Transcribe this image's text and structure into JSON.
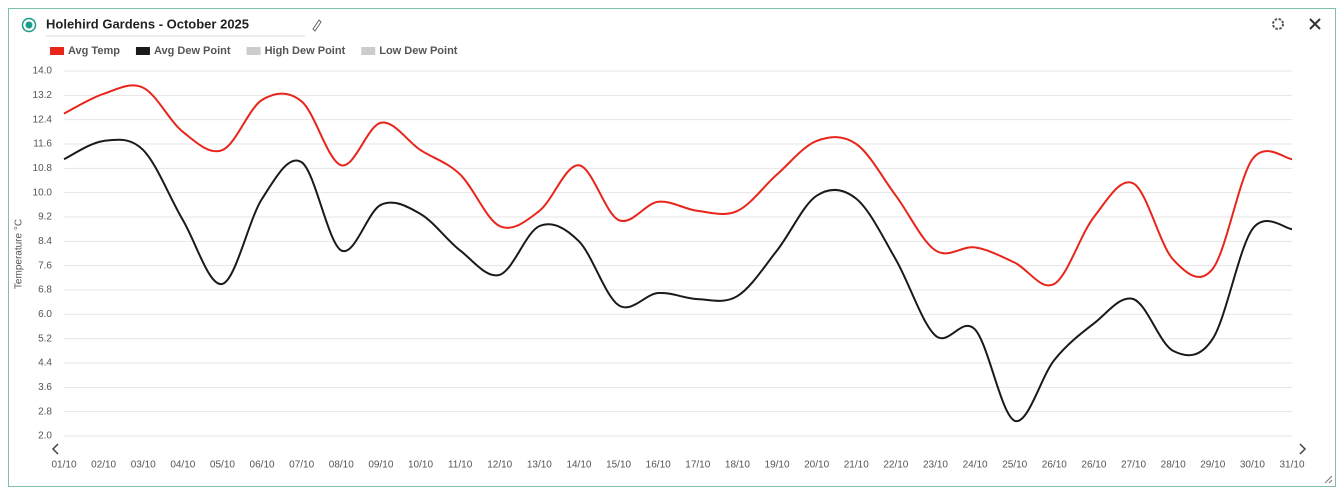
{
  "chart_data": {
    "type": "line",
    "title": "Holehird Gardens - October 2025",
    "y_label": "Temperature °C",
    "categories": [
      "01/10",
      "02/10",
      "03/10",
      "04/10",
      "05/10",
      "06/10",
      "07/10",
      "08/10",
      "09/10",
      "10/10",
      "11/10",
      "12/10",
      "13/10",
      "14/10",
      "15/10",
      "16/10",
      "17/10",
      "18/10",
      "19/10",
      "20/10",
      "21/10",
      "22/10",
      "23/10",
      "24/10",
      "25/10",
      "26/10",
      "26/10",
      "27/10",
      "28/10",
      "29/10",
      "30/10",
      "31/10"
    ],
    "series": [
      {
        "name": "Avg Temp",
        "color": "#e8251a",
        "visible": true,
        "values": [
          12.6,
          13.25,
          13.45,
          12.0,
          11.4,
          13.05,
          13.0,
          10.9,
          12.3,
          11.4,
          10.6,
          8.9,
          9.4,
          10.9,
          9.1,
          9.7,
          9.4,
          9.4,
          10.6,
          11.7,
          11.6,
          9.9,
          8.1,
          8.2,
          7.7,
          7.0,
          9.2,
          10.3,
          7.8,
          7.5,
          11.1,
          11.1
        ]
      },
      {
        "name": "Avg Dew Point",
        "color": "#1a1a1a",
        "visible": true,
        "values": [
          11.1,
          11.7,
          11.4,
          9.1,
          7.0,
          9.8,
          11.0,
          8.1,
          9.6,
          9.3,
          8.1,
          7.3,
          8.9,
          8.4,
          6.3,
          6.7,
          6.5,
          6.6,
          8.1,
          9.9,
          9.8,
          7.8,
          5.3,
          5.5,
          2.5,
          4.5,
          5.7,
          6.5,
          4.8,
          5.2,
          8.8,
          8.8
        ]
      },
      {
        "name": "High Dew Point",
        "color": "#cccccc",
        "visible": false
      },
      {
        "name": "Low Dew Point",
        "color": "#cccccc",
        "visible": false
      }
    ],
    "ylim": [
      2,
      14
    ],
    "yticks": [
      {
        "value": 2,
        "label": "2.0"
      },
      2.8,
      3.6,
      4.4,
      5.2,
      {
        "value": 6,
        "label": "6.0"
      },
      6.8,
      7.6,
      8.4,
      9.2,
      {
        "value": 10,
        "label": "10.0"
      },
      10.8,
      11.6,
      12.4,
      13.2,
      {
        "value": 14,
        "label": "14.0"
      }
    ],
    "grid": true
  }
}
